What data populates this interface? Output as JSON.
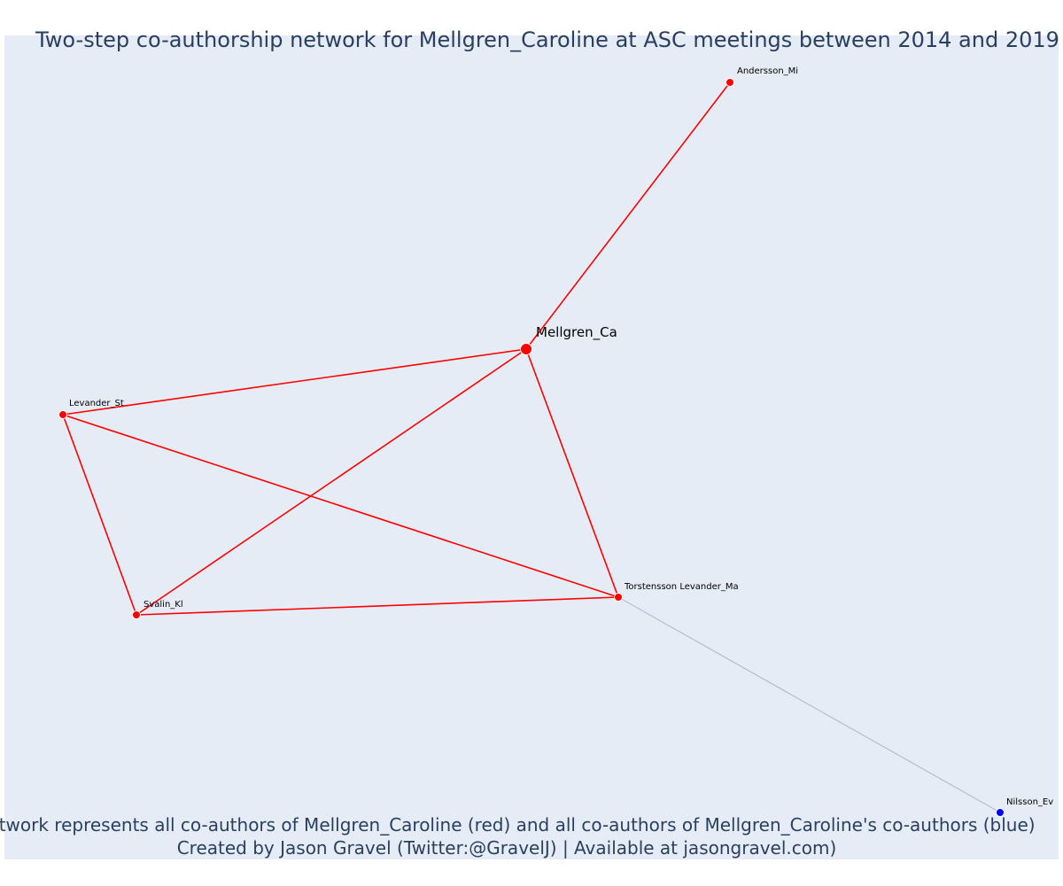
{
  "title": "Two-step co-authorship network for Mellgren_Caroline at ASC meetings between 2014 and 2019",
  "caption_lines": [
    "Network represents all co-authors of Mellgren_Caroline (red) and all co-authors of Mellgren_Caroline's co-authors (blue)",
    "Created by Jason Gravel (Twitter:@GravelJ) | Available at jasongravel.com)"
  ],
  "colors": {
    "plot_background": "#e5ecf6",
    "first_step": "#ff0000",
    "second_step": "#0000ff",
    "second_step_edge": "#b0b0c8",
    "text": "#2a3f5f"
  },
  "nodes": [
    {
      "id": "mellgren",
      "label": "Mellgren_Ca",
      "group": "focal"
    },
    {
      "id": "andersson",
      "label": "Andersson_Mi",
      "group": "first_step"
    },
    {
      "id": "levander",
      "label": "Levander_St",
      "group": "first_step"
    },
    {
      "id": "svalin",
      "label": "Svalin_Kl",
      "group": "first_step"
    },
    {
      "id": "torstensson",
      "label": "Torstensson Levander_Ma",
      "group": "first_step"
    },
    {
      "id": "nilsson",
      "label": "Nilsson_Ev",
      "group": "second_step"
    }
  ],
  "edges": [
    {
      "source": "mellgren",
      "target": "andersson",
      "type": "first_step"
    },
    {
      "source": "mellgren",
      "target": "levander",
      "type": "first_step"
    },
    {
      "source": "mellgren",
      "target": "svalin",
      "type": "first_step"
    },
    {
      "source": "mellgren",
      "target": "torstensson",
      "type": "first_step"
    },
    {
      "source": "levander",
      "target": "svalin",
      "type": "first_step"
    },
    {
      "source": "levander",
      "target": "torstensson",
      "type": "first_step"
    },
    {
      "source": "svalin",
      "target": "torstensson",
      "type": "first_step"
    },
    {
      "source": "torstensson",
      "target": "nilsson",
      "type": "second_step"
    }
  ]
}
